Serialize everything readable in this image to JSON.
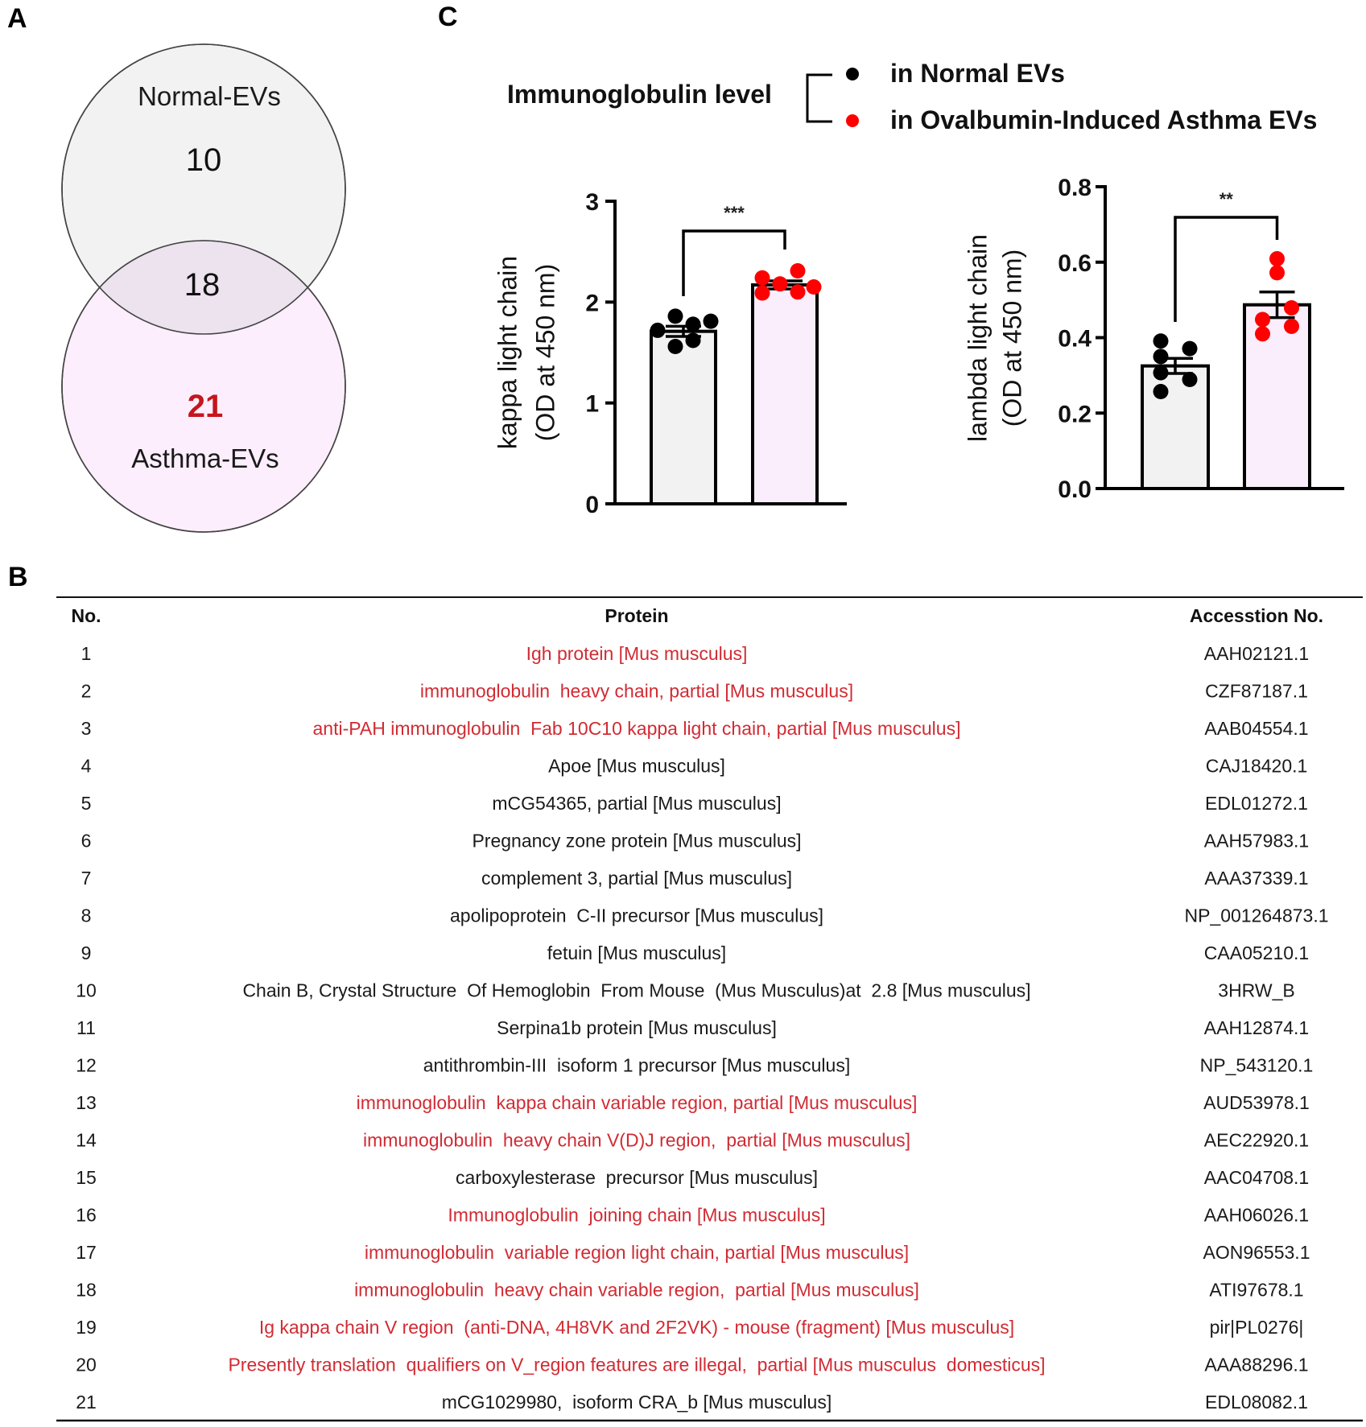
{
  "panels": {
    "a": "A",
    "b": "B",
    "c": "C"
  },
  "venn": {
    "sets": [
      {
        "name": "Normal-EVs",
        "only_count": "10",
        "fill": "#f2f2f2"
      },
      {
        "name": "Asthma-EVs",
        "only_count": "21",
        "fill": "#fdeefd"
      }
    ],
    "overlap_count": "18",
    "overlap_fill": "#ece3ef",
    "highlight_color": "#c4161c"
  },
  "legend": {
    "title": "Immunoglobulin level",
    "items": [
      {
        "label": "in Normal EVs",
        "color": "#000000"
      },
      {
        "label": "in Ovalbumin-Induced Asthma EVs",
        "color": "#ff0000"
      }
    ]
  },
  "chart_data": [
    {
      "type": "bar",
      "title": "",
      "xlabel": "",
      "ylabel": "kappa light chain\n(OD at 450 nm)",
      "ylabel_lines": [
        "kappa light chain",
        "(OD at 450 nm)"
      ],
      "ylim": [
        0,
        3
      ],
      "yticks": [
        0,
        1,
        2,
        3
      ],
      "ytick_labels": [
        "0",
        "1",
        "2",
        "3"
      ],
      "categories": [
        "Normal EVs",
        "Ovalbumin-Induced Asthma EVs"
      ],
      "bar_colors": [
        "#f2f2f2",
        "#fbeefc"
      ],
      "point_colors": [
        "#000000",
        "#ff0000"
      ],
      "series": [
        {
          "name": "in Normal EVs",
          "mean": 1.71,
          "sem": 0.05,
          "points": [
            1.72,
            1.86,
            1.78,
            1.81,
            1.56,
            1.62
          ]
        },
        {
          "name": "in Ovalbumin-Induced Asthma EVs",
          "mean": 2.17,
          "sem": 0.04,
          "points": [
            2.24,
            2.18,
            2.31,
            2.15,
            2.09,
            2.1
          ]
        }
      ],
      "significance": "***"
    },
    {
      "type": "bar",
      "title": "",
      "xlabel": "",
      "ylabel": "lambda light chain\n(OD at 450 nm)",
      "ylabel_lines": [
        "lambda light chain",
        "(OD at 450 nm)"
      ],
      "ylim": [
        0,
        0.8
      ],
      "yticks": [
        0,
        0.2,
        0.4,
        0.6,
        0.8
      ],
      "ytick_labels": [
        "0.0",
        "0.2",
        "0.4",
        "0.6",
        "0.8"
      ],
      "categories": [
        "Normal EVs",
        "Ovalbumin-Induced Asthma EVs"
      ],
      "bar_colors": [
        "#f2f2f2",
        "#fbeefc"
      ],
      "point_colors": [
        "#000000",
        "#ff0000"
      ],
      "series": [
        {
          "name": "in Normal EVs",
          "mean": 0.325,
          "sem": 0.02,
          "points": [
            0.391,
            0.371,
            0.35,
            0.307,
            0.289,
            0.257
          ]
        },
        {
          "name": "in Ovalbumin-Induced Asthma EVs",
          "mean": 0.487,
          "sem": 0.034,
          "points": [
            0.609,
            0.572,
            0.479,
            0.448,
            0.43,
            0.41
          ]
        }
      ],
      "significance": "**"
    }
  ],
  "table": {
    "headers": [
      "No.",
      "Protein",
      "Accesstion No."
    ],
    "highlight_color": "#d12b33",
    "rows": [
      {
        "no": "1",
        "protein": "Igh protein [Mus musculus]",
        "accession": "AAH02121.1",
        "highlight": true
      },
      {
        "no": "2",
        "protein": "immunoglobulin  heavy chain, partial [Mus musculus]",
        "accession": "CZF87187.1",
        "highlight": true
      },
      {
        "no": "3",
        "protein": "anti-PAH immunoglobulin  Fab 10C10 kappa light chain, partial [Mus musculus]",
        "accession": "AAB04554.1",
        "highlight": true
      },
      {
        "no": "4",
        "protein": "Apoe [Mus musculus]",
        "accession": "CAJ18420.1",
        "highlight": false
      },
      {
        "no": "5",
        "protein": "mCG54365, partial [Mus musculus]",
        "accession": "EDL01272.1",
        "highlight": false
      },
      {
        "no": "6",
        "protein": "Pregnancy zone protein [Mus musculus]",
        "accession": "AAH57983.1",
        "highlight": false
      },
      {
        "no": "7",
        "protein": "complement 3, partial [Mus musculus]",
        "accession": "AAA37339.1",
        "highlight": false
      },
      {
        "no": "8",
        "protein": "apolipoprotein  C-II precursor [Mus musculus]",
        "accession": "NP_001264873.1",
        "highlight": false
      },
      {
        "no": "9",
        "protein": "fetuin [Mus musculus]",
        "accession": "CAA05210.1",
        "highlight": false
      },
      {
        "no": "10",
        "protein": "Chain B, Crystal Structure  Of Hemoglobin  From Mouse  (Mus Musculus)at  2.8 [Mus musculus]",
        "accession": "3HRW_B",
        "highlight": false
      },
      {
        "no": "11",
        "protein": "Serpina1b protein [Mus musculus]",
        "accession": "AAH12874.1",
        "highlight": false
      },
      {
        "no": "12",
        "protein": "antithrombin-III  isoform 1 precursor [Mus musculus]",
        "accession": "NP_543120.1",
        "highlight": false
      },
      {
        "no": "13",
        "protein": "immunoglobulin  kappa chain variable region, partial [Mus musculus]",
        "accession": "AUD53978.1",
        "highlight": true
      },
      {
        "no": "14",
        "protein": "immunoglobulin  heavy chain V(D)J region,  partial [Mus musculus]",
        "accession": "AEC22920.1",
        "highlight": true
      },
      {
        "no": "15",
        "protein": "carboxylesterase  precursor [Mus musculus]",
        "accession": "AAC04708.1",
        "highlight": false
      },
      {
        "no": "16",
        "protein": "Immunoglobulin  joining chain [Mus musculus]",
        "accession": "AAH06026.1",
        "highlight": true
      },
      {
        "no": "17",
        "protein": "immunoglobulin  variable region light chain, partial [Mus musculus]",
        "accession": "AON96553.1",
        "highlight": true
      },
      {
        "no": "18",
        "protein": "immunoglobulin  heavy chain variable region,  partial [Mus musculus]",
        "accession": "ATI97678.1",
        "highlight": true
      },
      {
        "no": "19",
        "protein": "Ig kappa chain V region  (anti-DNA, 4H8VK and 2F2VK) - mouse (fragment) [Mus musculus]",
        "accession": "pir|PL0276|",
        "highlight": true
      },
      {
        "no": "20",
        "protein": "Presently translation  qualifiers on V_region features are illegal,  partial [Mus musculus  domesticus]",
        "accession": "AAA88296.1",
        "highlight": true
      },
      {
        "no": "21",
        "protein": "mCG1029980,  isoform CRA_b [Mus musculus]",
        "accession": "EDL08082.1",
        "highlight": false
      }
    ]
  }
}
